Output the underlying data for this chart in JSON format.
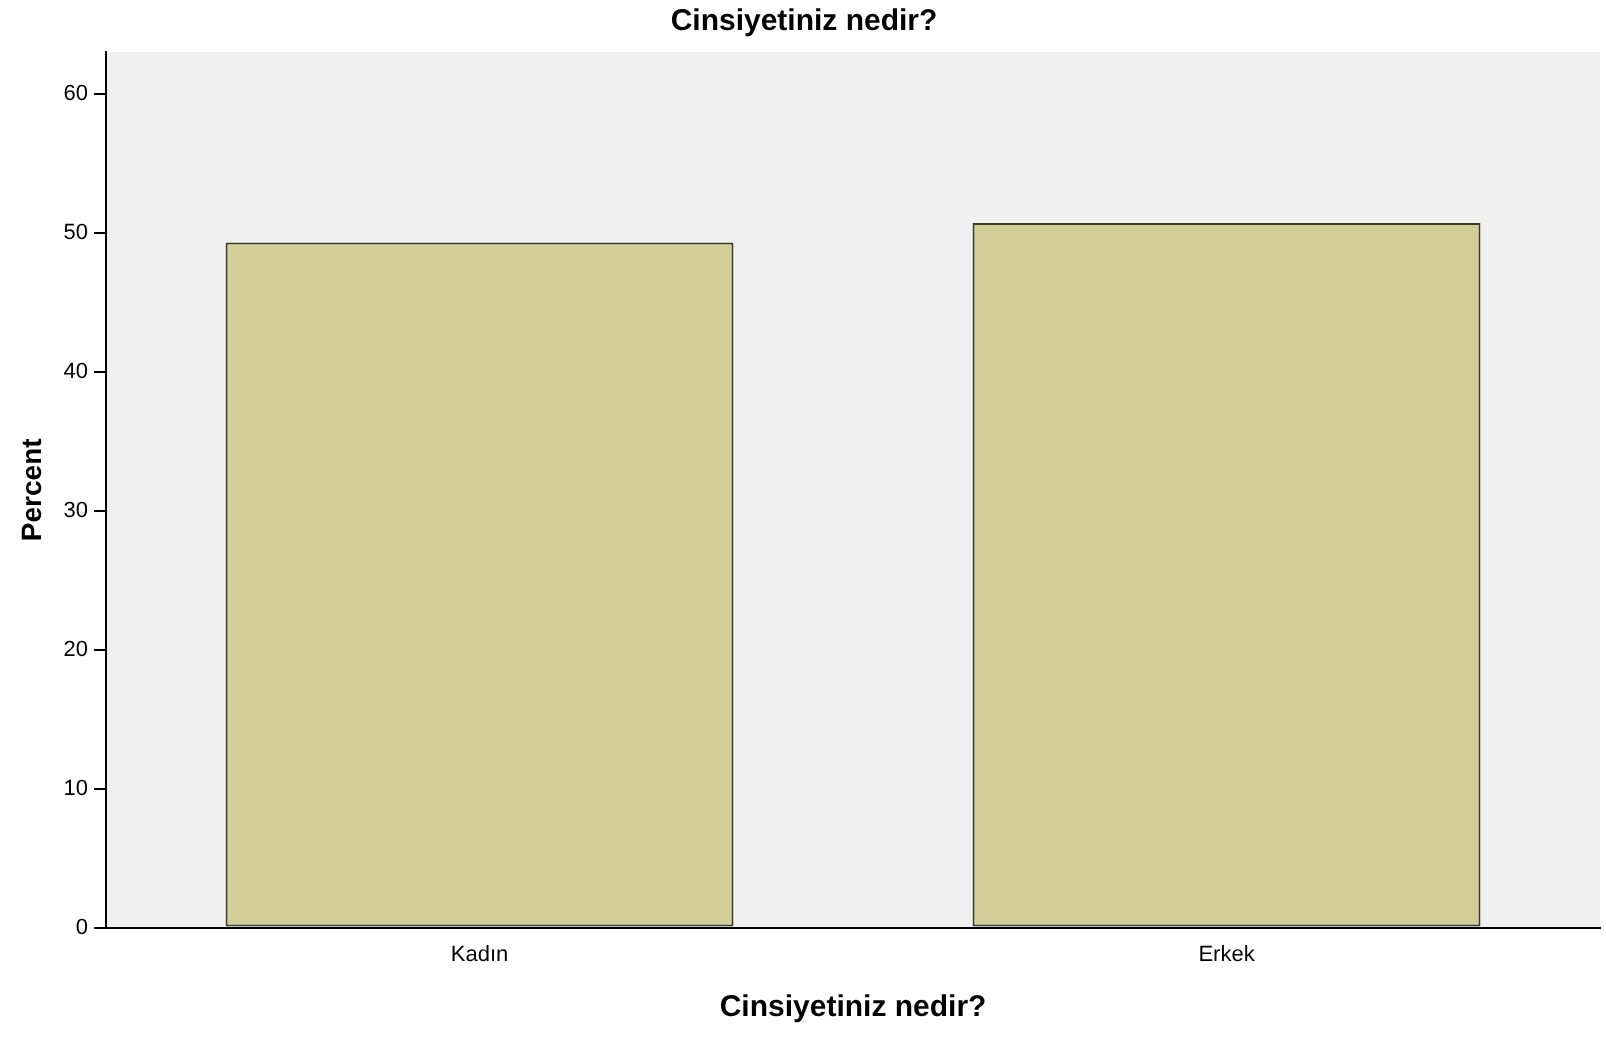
{
  "chart_data": {
    "type": "bar",
    "title": "Cinsiyetiniz nedir?",
    "xlabel": "Cinsiyetiniz nedir?",
    "ylabel": "Percent",
    "categories": [
      "Kadın",
      "Erkek"
    ],
    "values": [
      49.3,
      50.7
    ],
    "color": "#d3ce97",
    "ylim": [
      0,
      63
    ],
    "yticks": [
      0,
      10,
      20,
      30,
      40,
      50,
      60
    ],
    "grid": false,
    "legend": false
  }
}
